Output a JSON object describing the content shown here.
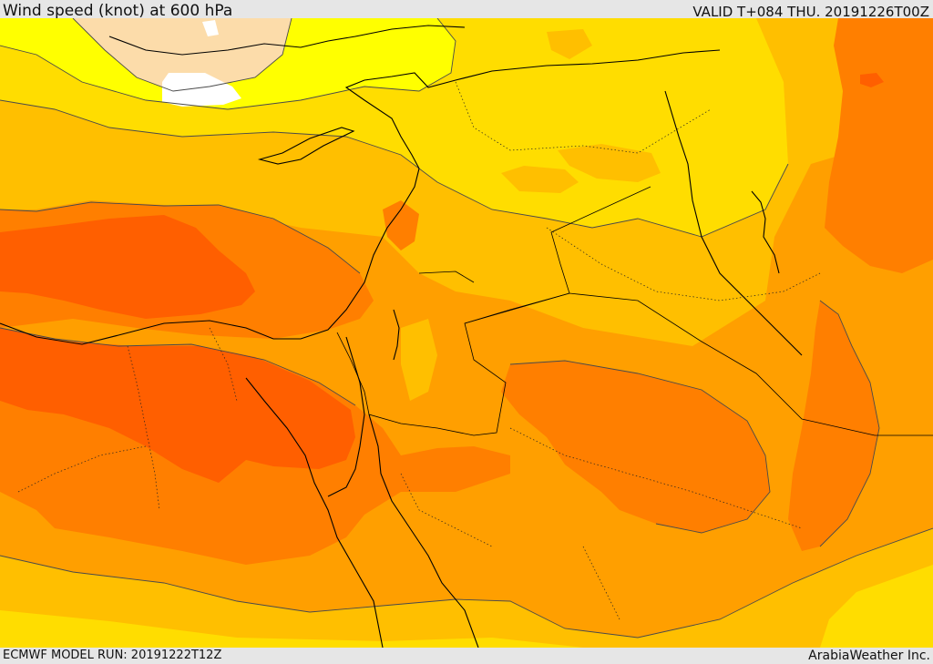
{
  "header": {
    "title": "Wind speed (knot) at 600 hPa",
    "valid": "VALID T+084 THU. 20191226T00Z"
  },
  "footer": {
    "model_run": "ECMWF MODEL RUN: 20191222T12Z",
    "brand": "ArabiaWeather Inc."
  },
  "map": {
    "palette": {
      "white": "#ffffff",
      "peach": "#fcdcaa",
      "bright_yellow": "#ffff00",
      "yellow": "#ffdd00",
      "amber": "#ffbf00",
      "orange": "#ff9f00",
      "dark_orange": "#ff7f00",
      "red_orange": "#ff5f00"
    }
  }
}
